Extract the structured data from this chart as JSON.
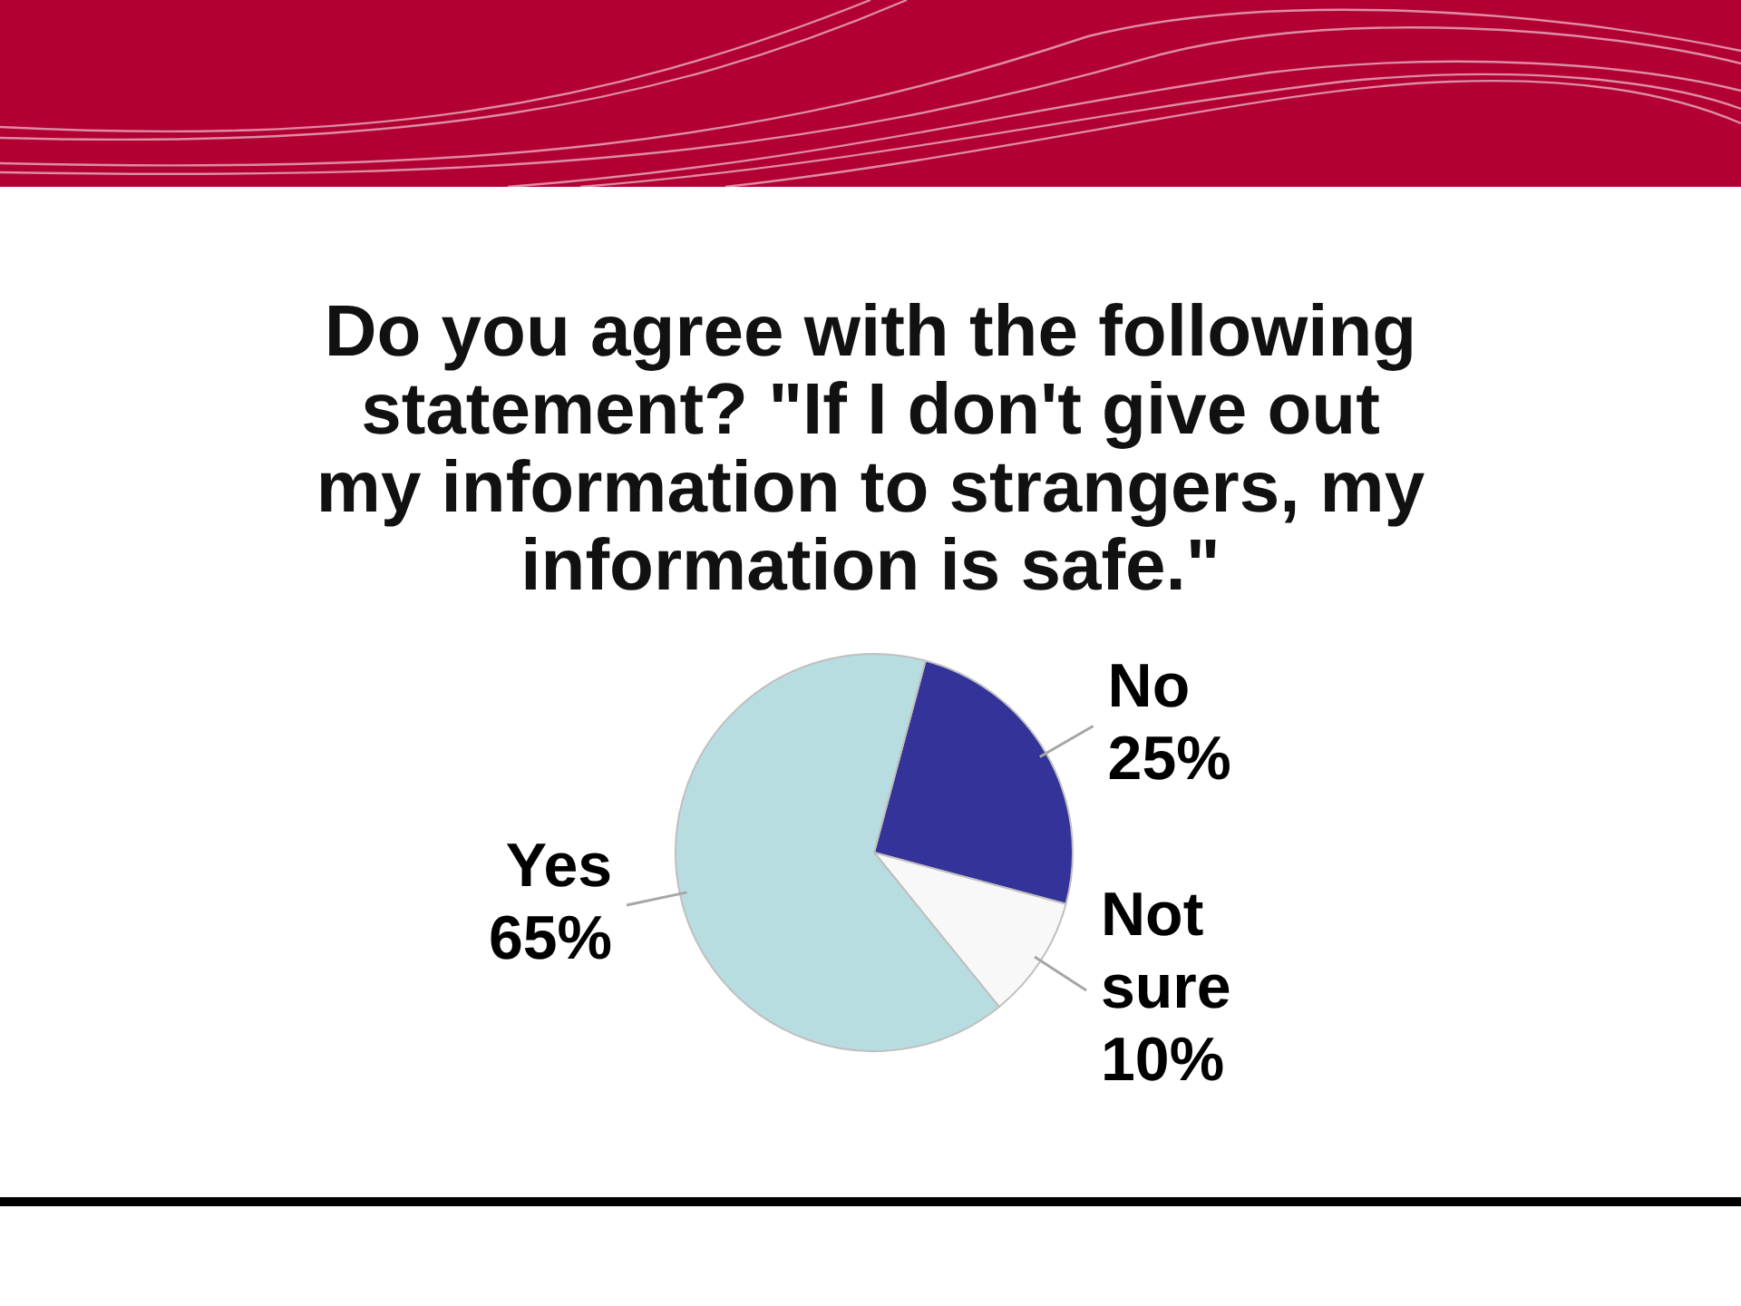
{
  "chart_data": {
    "type": "pie",
    "title": "Do you agree with the following statement? \"If I don't give out my information to strangers, my information is safe.\"",
    "categories": [
      "No",
      "Not sure",
      "Yes"
    ],
    "values": [
      25,
      10,
      65
    ],
    "colors": [
      "#333399",
      "#f8f8f8",
      "#b8dde0"
    ],
    "value_labels": [
      "25%",
      "10%",
      "65%"
    ],
    "legend": false
  }
}
